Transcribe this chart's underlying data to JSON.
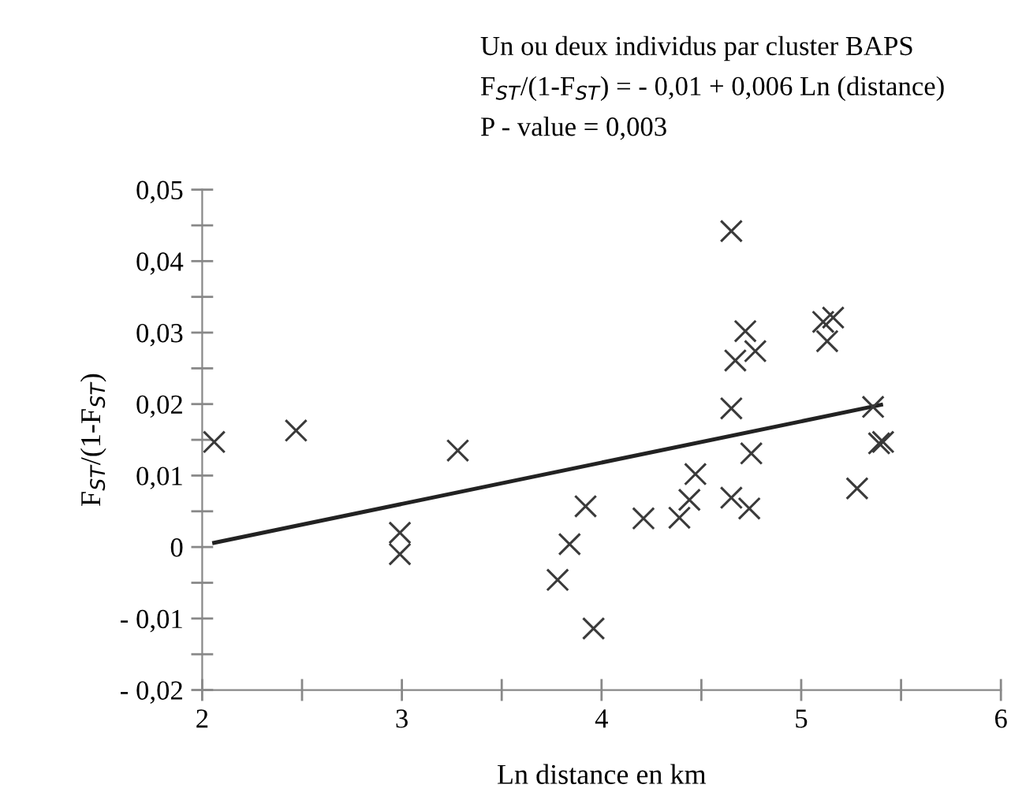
{
  "chart_data": {
    "type": "scatter",
    "title": "Un ou deux individus par cluster BAPS",
    "annotations": [
      "F$_{ST}$/(1-F$_{ST}$) = - 0,01 + 0,006 Ln (distance)",
      "P - value = 0,003"
    ],
    "xlabel": "Ln distance en km",
    "ylabel": "F$_{ST}$/(1-F$_{ST}$)",
    "series": [
      {
        "color": "#3a3a3a",
        "marker": "cross",
        "x": [
          2.06,
          2.47,
          3.28,
          2.99,
          2.99,
          3.78,
          3.84,
          3.92,
          3.96,
          4.65,
          4.72,
          4.67,
          4.77,
          4.65,
          4.75,
          4.47,
          4.44,
          4.39,
          4.21,
          4.65,
          4.74,
          5.11,
          5.16,
          5.13,
          5.36,
          5.39,
          5.41,
          5.28
        ],
        "values": [
          0.0147,
          0.0163,
          0.0135,
          0.002,
          -0.001,
          -0.0046,
          0.0004,
          0.0057,
          -0.0114,
          0.0442,
          0.0302,
          0.0261,
          0.0274,
          0.0194,
          0.0131,
          0.0102,
          0.0066,
          0.0041,
          0.004,
          0.0069,
          0.0054,
          0.0315,
          0.0321,
          0.0288,
          0.0196,
          0.0145,
          0.0147,
          0.0082
        ]
      },
      {
        "type": "line",
        "color": "#222222",
        "marker": "none",
        "line_style": "solid",
        "x": [
          2.06,
          5.4
        ],
        "values": [
          0.0006,
          0.0199
        ]
      }
    ],
    "xlim": [
      2,
      6
    ],
    "ylim": [
      -0.02,
      0.05
    ],
    "xticks": [
      2,
      {
        "value": 2.5,
        "label": null
      },
      3,
      {
        "value": 3.5,
        "label": null
      },
      4,
      {
        "value": 4.5,
        "label": null
      },
      5,
      {
        "value": 5.5,
        "label": null
      },
      6
    ],
    "yticks": [
      {
        "value": -0.02,
        "label": "- 0,02"
      },
      {
        "value": -0.015,
        "label": null
      },
      {
        "value": -0.01,
        "label": "- 0,01"
      },
      {
        "value": -0.005,
        "label": null
      },
      {
        "value": 0,
        "label": "0"
      },
      {
        "value": 0.005,
        "label": null
      },
      {
        "value": 0.01,
        "label": "0,01"
      },
      {
        "value": 0.015,
        "label": null
      },
      {
        "value": 0.02,
        "label": "0,02"
      },
      {
        "value": 0.025,
        "label": null
      },
      {
        "value": 0.03,
        "label": "0,03"
      },
      {
        "value": 0.035,
        "label": null
      },
      {
        "value": 0.04,
        "label": "0,04"
      },
      {
        "value": 0.045,
        "label": null
      },
      {
        "value": 0.05,
        "label": "0,05"
      }
    ],
    "grid": false,
    "legend": false
  }
}
